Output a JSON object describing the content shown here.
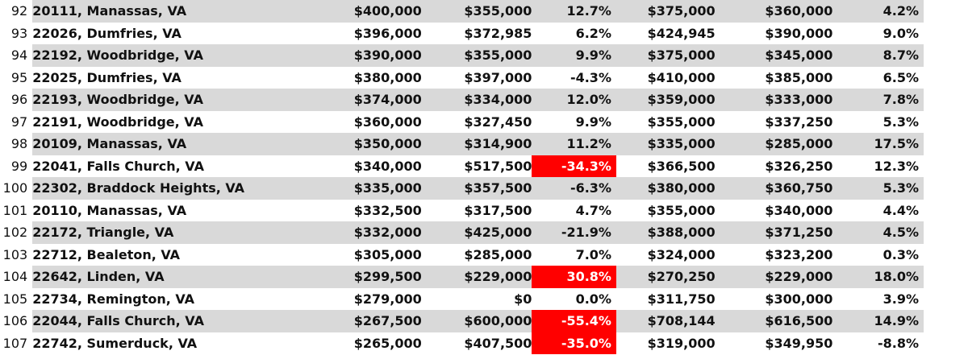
{
  "colors": {
    "row_shade": "#d9d9d9",
    "highlight_red": "#ff0000"
  },
  "rows": [
    {
      "rank": "92",
      "name": "20111, Manassas, VA",
      "v1": "$400,000",
      "v2": "$355,000",
      "pct1": "12.7%",
      "v3": "$375,000",
      "v4": "$360,000",
      "pct2": "4.2%",
      "shaded": true,
      "red": false
    },
    {
      "rank": "93",
      "name": "22026, Dumfries, VA",
      "v1": "$396,000",
      "v2": "$372,985",
      "pct1": "6.2%",
      "v3": "$424,945",
      "v4": "$390,000",
      "pct2": "9.0%",
      "shaded": false,
      "red": false
    },
    {
      "rank": "94",
      "name": "22192, Woodbridge, VA",
      "v1": "$390,000",
      "v2": "$355,000",
      "pct1": "9.9%",
      "v3": "$375,000",
      "v4": "$345,000",
      "pct2": "8.7%",
      "shaded": true,
      "red": false
    },
    {
      "rank": "95",
      "name": "22025, Dumfries, VA",
      "v1": "$380,000",
      "v2": "$397,000",
      "pct1": "-4.3%",
      "v3": "$410,000",
      "v4": "$385,000",
      "pct2": "6.5%",
      "shaded": false,
      "red": false
    },
    {
      "rank": "96",
      "name": "22193, Woodbridge, VA",
      "v1": "$374,000",
      "v2": "$334,000",
      "pct1": "12.0%",
      "v3": "$359,000",
      "v4": "$333,000",
      "pct2": "7.8%",
      "shaded": true,
      "red": false
    },
    {
      "rank": "97",
      "name": "22191, Woodbridge, VA",
      "v1": "$360,000",
      "v2": "$327,450",
      "pct1": "9.9%",
      "v3": "$355,000",
      "v4": "$337,250",
      "pct2": "5.3%",
      "shaded": false,
      "red": false
    },
    {
      "rank": "98",
      "name": "20109, Manassas, VA",
      "v1": "$350,000",
      "v2": "$314,900",
      "pct1": "11.2%",
      "v3": "$335,000",
      "v4": "$285,000",
      "pct2": "17.5%",
      "shaded": true,
      "red": false
    },
    {
      "rank": "99",
      "name": "22041, Falls Church, VA",
      "v1": "$340,000",
      "v2": "$517,500",
      "pct1": "-34.3%",
      "v3": "$366,500",
      "v4": "$326,250",
      "pct2": "12.3%",
      "shaded": false,
      "red": true
    },
    {
      "rank": "100",
      "name": "22302, Braddock Heights, VA",
      "v1": "$335,000",
      "v2": "$357,500",
      "pct1": "-6.3%",
      "v3": "$380,000",
      "v4": "$360,750",
      "pct2": "5.3%",
      "shaded": true,
      "red": false
    },
    {
      "rank": "101",
      "name": "20110, Manassas, VA",
      "v1": "$332,500",
      "v2": "$317,500",
      "pct1": "4.7%",
      "v3": "$355,000",
      "v4": "$340,000",
      "pct2": "4.4%",
      "shaded": false,
      "red": false
    },
    {
      "rank": "102",
      "name": "22172, Triangle, VA",
      "v1": "$332,000",
      "v2": "$425,000",
      "pct1": "-21.9%",
      "v3": "$388,000",
      "v4": "$371,250",
      "pct2": "4.5%",
      "shaded": true,
      "red": false
    },
    {
      "rank": "103",
      "name": "22712, Bealeton, VA",
      "v1": "$305,000",
      "v2": "$285,000",
      "pct1": "7.0%",
      "v3": "$324,000",
      "v4": "$323,200",
      "pct2": "0.3%",
      "shaded": false,
      "red": false
    },
    {
      "rank": "104",
      "name": "22642, Linden, VA",
      "v1": "$299,500",
      "v2": "$229,000",
      "pct1": "30.8%",
      "v3": "$270,250",
      "v4": "$229,000",
      "pct2": "18.0%",
      "shaded": true,
      "red": true
    },
    {
      "rank": "105",
      "name": "22734, Remington, VA",
      "v1": "$279,000",
      "v2": "$0",
      "pct1": "0.0%",
      "v3": "$311,750",
      "v4": "$300,000",
      "pct2": "3.9%",
      "shaded": false,
      "red": false
    },
    {
      "rank": "106",
      "name": "22044, Falls Church, VA",
      "v1": "$267,500",
      "v2": "$600,000",
      "pct1": "-55.4%",
      "v3": "$708,144",
      "v4": "$616,500",
      "pct2": "14.9%",
      "shaded": true,
      "red": true
    },
    {
      "rank": "107",
      "name": "22742, Sumerduck, VA",
      "v1": "$265,000",
      "v2": "$407,500",
      "pct1": "-35.0%",
      "v3": "$319,000",
      "v4": "$349,950",
      "pct2": "-8.8%",
      "shaded": false,
      "red": true
    }
  ]
}
